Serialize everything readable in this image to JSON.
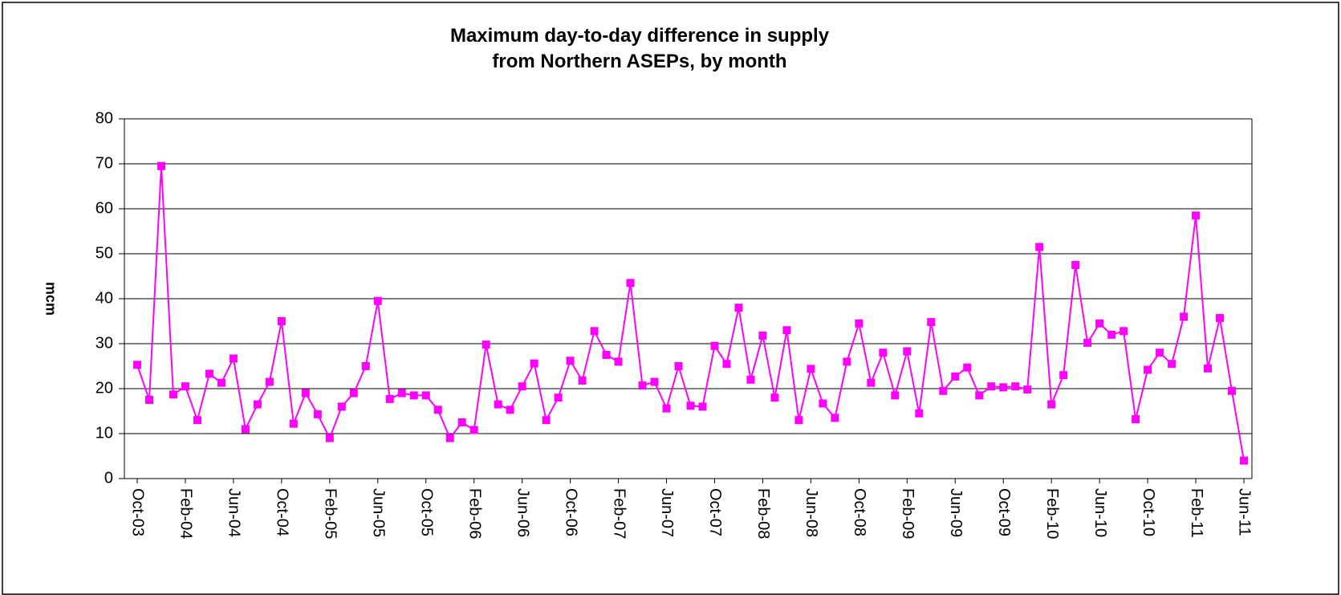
{
  "chart_data": {
    "type": "line",
    "title": [
      "Maximum day-to-day difference in supply",
      "from Northern ASEPs, by month"
    ],
    "y_label": "mcm",
    "categories": [
      "Oct-03",
      null,
      null,
      null,
      "Feb-04",
      null,
      null,
      null,
      "Jun-04",
      null,
      null,
      null,
      "Oct-04",
      null,
      null,
      null,
      "Feb-05",
      null,
      null,
      null,
      "Jun-05",
      null,
      null,
      null,
      "Oct-05",
      null,
      null,
      null,
      "Feb-06",
      null,
      null,
      null,
      "Jun-06",
      null,
      null,
      null,
      "Oct-06",
      null,
      null,
      null,
      "Feb-07",
      null,
      null,
      null,
      "Jun-07",
      null,
      null,
      null,
      "Oct-07",
      null,
      null,
      null,
      "Feb-08",
      null,
      null,
      null,
      "Jun-08",
      null,
      null,
      null,
      "Oct-08",
      null,
      null,
      null,
      "Feb-09",
      null,
      null,
      null,
      "Jun-09",
      null,
      null,
      null,
      "Oct-09",
      null,
      null,
      null,
      "Feb-10",
      null,
      null,
      null,
      "Jun-10",
      null,
      null,
      null,
      "Oct-10",
      null,
      null,
      null,
      "Feb-11",
      null,
      null,
      null,
      "Jun-11"
    ],
    "values": [
      25.3,
      17.5,
      69.5,
      18.7,
      20.5,
      13,
      23.3,
      21.3,
      26.7,
      11,
      16.5,
      21.5,
      35,
      12.2,
      19,
      14.3,
      9,
      16,
      19,
      25,
      39.5,
      17.7,
      19,
      18.5,
      18.5,
      15.3,
      9,
      12.5,
      10.8,
      29.8,
      16.5,
      15.3,
      20.5,
      25.6,
      13,
      18,
      26.2,
      21.8,
      32.8,
      27.5,
      26,
      43.5,
      20.7,
      21.5,
      15.6,
      25,
      16.2,
      16,
      29.5,
      25.5,
      38,
      22,
      31.8,
      18,
      33,
      13,
      24.4,
      16.7,
      13.5,
      26,
      34.5,
      21.3,
      28,
      18.5,
      28.3,
      14.5,
      34.8,
      19.5,
      22.7,
      24.7,
      18.5,
      20.5,
      20.3,
      20.5,
      19.8,
      51.5,
      16.5,
      23,
      47.5,
      30.2,
      34.5,
      32,
      32.8,
      13.2,
      24.2,
      28,
      25.5,
      36,
      58.5,
      24.5,
      35.7,
      19.5,
      4
    ],
    "color": "#ff00ff",
    "ylim": [
      0,
      80
    ],
    "yticks": [
      0,
      10,
      20,
      30,
      40,
      50,
      60,
      70,
      80
    ],
    "grid": true
  }
}
